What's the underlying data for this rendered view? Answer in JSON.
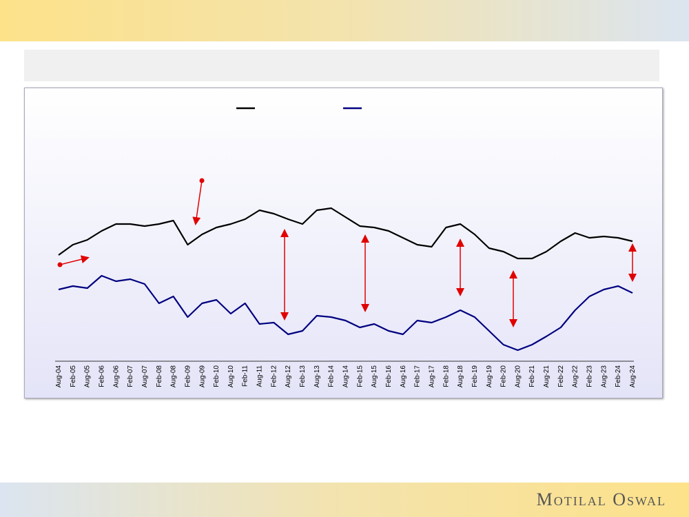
{
  "chart_data": {
    "type": "line",
    "categories": [
      "Aug-04",
      "Feb-05",
      "Aug-05",
      "Feb-06",
      "Aug-06",
      "Feb-07",
      "Aug-07",
      "Feb-08",
      "Aug-08",
      "Feb-09",
      "Aug-09",
      "Feb-10",
      "Aug-10",
      "Feb-11",
      "Aug-11",
      "Feb-12",
      "Aug-12",
      "Feb-13",
      "Aug-13",
      "Feb-14",
      "Aug-14",
      "Feb-15",
      "Aug-15",
      "Feb-16",
      "Aug-16",
      "Feb-17",
      "Aug-17",
      "Feb-18",
      "Aug-18",
      "Feb-19",
      "Aug-19",
      "Feb-20",
      "Aug-20",
      "Feb-21",
      "Aug-21",
      "Feb-22",
      "Aug-22",
      "Feb-23",
      "Aug-23",
      "Feb-24",
      "Aug-24"
    ],
    "series": [
      {
        "color": "#000000",
        "values": [
          155,
          170,
          177,
          190,
          200,
          200,
          197,
          200,
          205,
          170,
          185,
          195,
          200,
          207,
          220,
          215,
          207,
          200,
          220,
          223,
          210,
          197,
          195,
          190,
          180,
          170,
          167,
          195,
          200,
          185,
          165,
          160,
          150,
          150,
          160,
          175,
          187,
          180,
          182,
          180,
          175
        ]
      },
      {
        "color": "#000080",
        "values": [
          105,
          110,
          107,
          125,
          117,
          120,
          113,
          85,
          95,
          65,
          85,
          90,
          70,
          85,
          55,
          57,
          40,
          45,
          67,
          65,
          60,
          50,
          55,
          45,
          40,
          60,
          57,
          65,
          75,
          65,
          45,
          25,
          17,
          25,
          37,
          50,
          75,
          95,
          105,
          110,
          100
        ]
      }
    ],
    "ylim": [
      0,
      385
    ]
  },
  "footer": {
    "brand": "Motilal Oswal"
  }
}
